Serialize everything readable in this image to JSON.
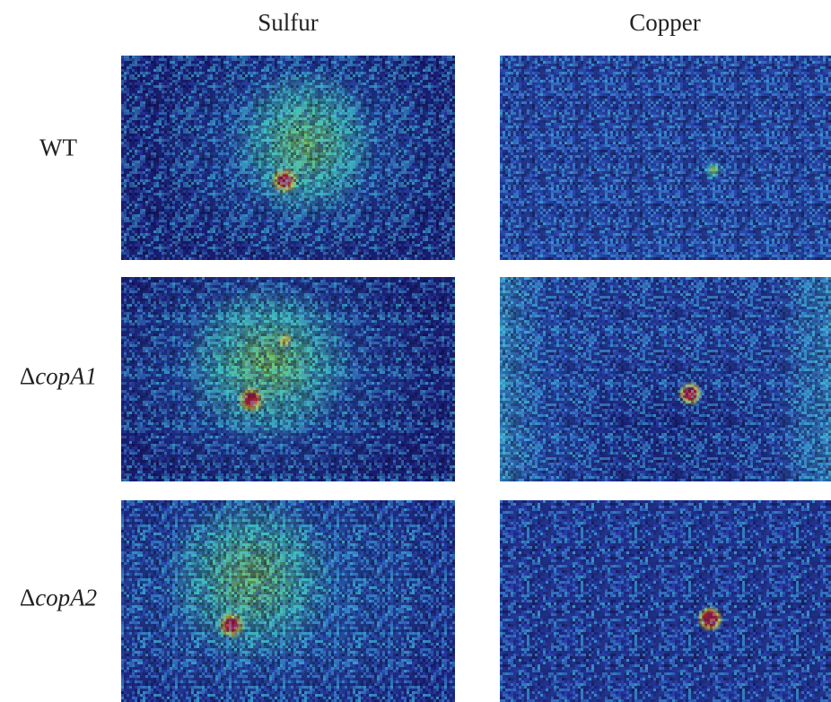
{
  "columns": [
    "Sulfur",
    "Copper"
  ],
  "rows": [
    {
      "symbol": "",
      "label": "WT"
    },
    {
      "symbol": "Δ",
      "label": "copA1"
    },
    {
      "symbol": "Δ",
      "label": "copA2"
    }
  ]
}
